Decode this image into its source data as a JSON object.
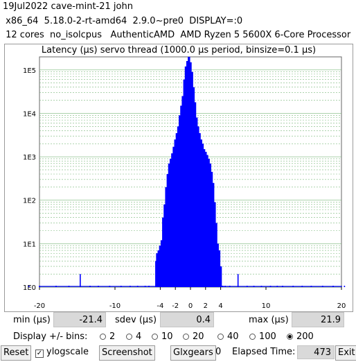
{
  "header": {
    "line1": "19Jul2022 cave-mint-21 john",
    "line2": " x86_64  5.18.0-2-rt-amd64  2.9.0~pre0  DISPLAY=:0",
    "line3": " 12 cores  no_isolcpus   AuthenticAMD  AMD Ryzen 5 5600X 6-Core Processor"
  },
  "chart_data": {
    "type": "bar",
    "title": "Latency (µs) servo thread (1000.0 µs period, binsize=0.1 µs)",
    "xlim": [
      -20,
      20
    ],
    "ylim_log10": [
      0,
      5.3
    ],
    "yscale": "log",
    "x_ticks": [
      "-20",
      "-10",
      "-4",
      "-2",
      "0",
      "2",
      "4",
      "10",
      "20"
    ],
    "x_tick_values": [
      -20,
      -10,
      -4,
      -2,
      0,
      2,
      4,
      10,
      20
    ],
    "y_ticks": [
      "1E0",
      "1E1",
      "1E2",
      "1E3",
      "1E4",
      "1E5"
    ],
    "y_tick_values": [
      1,
      10,
      100,
      1000,
      10000,
      100000
    ],
    "grid": true,
    "bar_color": "#0000ff",
    "grid_color": "#7ab87a",
    "bins": {
      "x": [
        -21.4,
        -20,
        -17.8,
        -16.1,
        -14.6,
        -13.3,
        -12.2,
        -10.7,
        -9.2,
        -8,
        -7,
        -6,
        -5.5,
        -4.6,
        -4.4,
        -4.2,
        -4.0,
        -3.8,
        -3.6,
        -3.4,
        -3.2,
        -3.0,
        -2.8,
        -2.6,
        -2.4,
        -2.2,
        -2.0,
        -1.8,
        -1.6,
        -1.4,
        -1.2,
        -1.0,
        -0.8,
        -0.6,
        -0.4,
        -0.2,
        0.0,
        0.2,
        0.4,
        0.6,
        0.8,
        1.0,
        1.2,
        1.4,
        1.6,
        1.8,
        2.0,
        2.2,
        2.4,
        2.6,
        2.8,
        3.0,
        3.2,
        3.4,
        3.6,
        3.8,
        4.0,
        4.2,
        4.6,
        5.2,
        6.3,
        7.5,
        8.4,
        9.4,
        10.6,
        11.5,
        12.2,
        13.6,
        14.8,
        16.0,
        17.5,
        18.9,
        20.4,
        21.9
      ],
      "y": [
        1,
        1,
        1,
        1,
        2,
        1,
        1,
        1,
        1,
        1,
        1,
        1,
        1,
        4,
        6,
        7,
        9,
        12,
        40,
        80,
        200,
        400,
        700,
        900,
        1200,
        1700,
        2500,
        3500,
        5000,
        9000,
        15000,
        25000,
        60000,
        120000,
        160000,
        200000,
        150000,
        90000,
        40000,
        18000,
        8000,
        5000,
        3500,
        2500,
        2000,
        1500,
        1300,
        1100,
        900,
        700,
        450,
        250,
        90,
        30,
        10,
        7,
        3,
        1,
        1,
        1,
        2,
        1,
        1,
        1,
        1,
        1,
        1,
        1,
        1,
        1,
        1,
        1,
        1,
        1
      ]
    }
  },
  "stats": {
    "min_label": "min (µs)",
    "min_value": "-21.4",
    "sdev_label": "sdev (µs)",
    "sdev_value": "0.4",
    "max_label": "max (µs)",
    "max_value": "21.9"
  },
  "bins_control": {
    "label": "Display +/- bins:",
    "options": [
      "2",
      "4",
      "10",
      "20",
      "40",
      "100",
      "200"
    ],
    "selected": "200"
  },
  "toolbar": {
    "reset": "Reset",
    "ylogscale": "ylogscale",
    "ylogscale_checked": true,
    "screenshot": "Screenshot",
    "glxgears": "Glxgears",
    "glxgears_count": "0",
    "elapsed_label": "Elapsed Time:",
    "elapsed_value": "473",
    "exit": "Exit"
  }
}
